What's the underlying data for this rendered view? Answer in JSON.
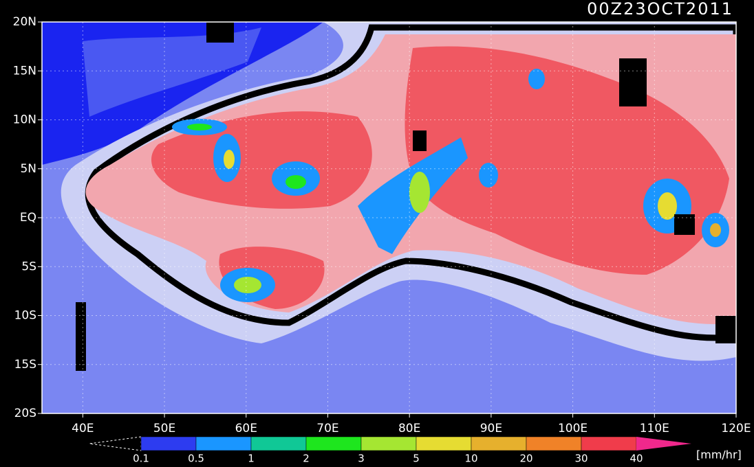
{
  "chart_data": {
    "type": "map",
    "title": "00Z23OCT2011",
    "xlim": [
      35,
      120
    ],
    "ylim": [
      -20,
      20
    ],
    "xticks": [
      {
        "value": 40,
        "label": "40E"
      },
      {
        "value": 50,
        "label": "50E"
      },
      {
        "value": 60,
        "label": "60E"
      },
      {
        "value": 70,
        "label": "70E"
      },
      {
        "value": 80,
        "label": "80E"
      },
      {
        "value": 90,
        "label": "90E"
      },
      {
        "value": 100,
        "label": "100E"
      },
      {
        "value": 110,
        "label": "110E"
      },
      {
        "value": 120,
        "label": "120E"
      }
    ],
    "yticks": [
      {
        "value": 20,
        "label": "20N"
      },
      {
        "value": 15,
        "label": "15N"
      },
      {
        "value": 10,
        "label": "10N"
      },
      {
        "value": 5,
        "label": "5N"
      },
      {
        "value": 0,
        "label": "EQ"
      },
      {
        "value": -5,
        "label": "5S"
      },
      {
        "value": -10,
        "label": "10S"
      },
      {
        "value": -15,
        "label": "15S"
      },
      {
        "value": -20,
        "label": "20S"
      }
    ],
    "grid": true,
    "colorbar": {
      "boundaries": [
        0.1,
        0.5,
        1,
        2,
        3,
        5,
        10,
        20,
        30,
        40
      ],
      "colors": [
        "#2d3cf0",
        "#1a96ff",
        "#10c896",
        "#1ee61e",
        "#a5e632",
        "#e6dc32",
        "#e6b02d",
        "#f08228",
        "#f03c4b"
      ],
      "over_color": "#f0288c",
      "unit": "[mm/hr]"
    }
  }
}
